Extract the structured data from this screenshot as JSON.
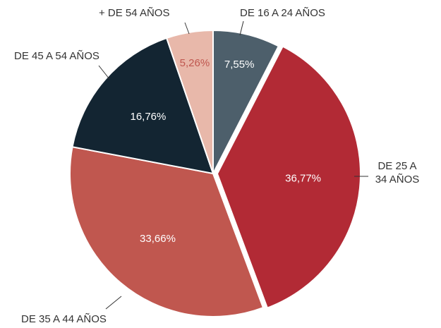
{
  "chart_data": {
    "type": "pie",
    "categories": [
      "DE 16 A 24 AÑOS",
      "DE 25 A 34 AÑOS",
      "DE 35 A 44 AÑOS",
      "DE 45 A 54 AÑOS",
      "+ DE 54 AÑOS"
    ],
    "values": [
      7.55,
      36.77,
      33.66,
      16.76,
      5.26
    ],
    "value_labels": [
      "7,55%",
      "36,77%",
      "33,66%",
      "16,76%",
      "5,26%"
    ],
    "colors": [
      "#4d5f6b",
      "#b22a35",
      "#c0574f",
      "#132532",
      "#e8b8aa"
    ]
  }
}
